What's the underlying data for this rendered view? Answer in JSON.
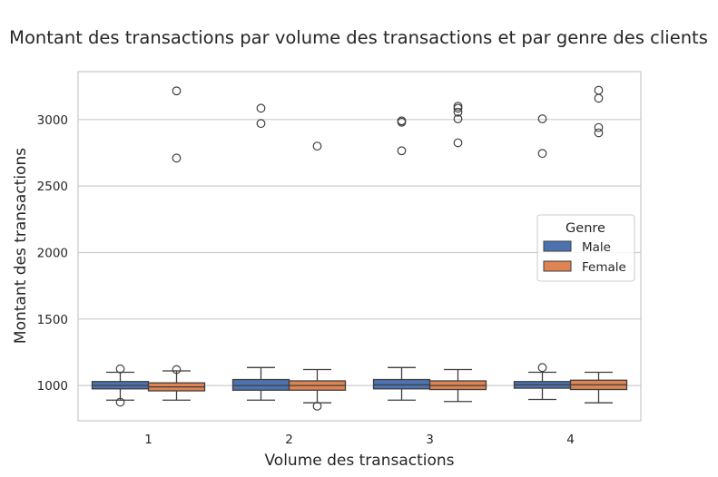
{
  "chart_data": {
    "type": "box",
    "title": "Montant des transactions par volume des transactions et par genre des clients",
    "xlabel": "Volume des transactions",
    "ylabel": "Montant des transactions",
    "categories": [
      "1",
      "2",
      "3",
      "4"
    ],
    "ylim": [
      735,
      3360
    ],
    "yticks": [
      1000,
      1500,
      2000,
      2500,
      3000
    ],
    "grid": "horizontal",
    "legend": {
      "title": "Genre",
      "placement": "center-right"
    },
    "series": [
      {
        "name": "Male",
        "color": "#4c72b0",
        "boxes": [
          {
            "whisker_low": 890,
            "q1": 975,
            "median": 1000,
            "q3": 1030,
            "whisker_high": 1100,
            "outliers": [
              1125,
              875
            ]
          },
          {
            "whisker_low": 890,
            "q1": 965,
            "median": 1000,
            "q3": 1045,
            "whisker_high": 1135,
            "outliers": [
              3085,
              2970
            ]
          },
          {
            "whisker_low": 890,
            "q1": 975,
            "median": 1005,
            "q3": 1045,
            "whisker_high": 1135,
            "outliers": [
              2990,
              2980,
              2765
            ]
          },
          {
            "whisker_low": 895,
            "q1": 980,
            "median": 1005,
            "q3": 1030,
            "whisker_high": 1100,
            "outliers": [
              1135,
              3005,
              2745
            ]
          }
        ]
      },
      {
        "name": "Female",
        "color": "#dd8452",
        "boxes": [
          {
            "whisker_low": 890,
            "q1": 960,
            "median": 990,
            "q3": 1020,
            "whisker_high": 1110,
            "outliers": [
              1120,
              3215,
              2710
            ]
          },
          {
            "whisker_low": 870,
            "q1": 965,
            "median": 1000,
            "q3": 1035,
            "whisker_high": 1120,
            "outliers": [
              845,
              2800
            ]
          },
          {
            "whisker_low": 880,
            "q1": 970,
            "median": 1000,
            "q3": 1035,
            "whisker_high": 1120,
            "outliers": [
              3100,
              3085,
              3055,
              3005,
              2825
            ]
          },
          {
            "whisker_low": 870,
            "q1": 970,
            "median": 1005,
            "q3": 1040,
            "whisker_high": 1100,
            "outliers": [
              3220,
              3160,
              2940,
              2900
            ]
          }
        ]
      }
    ]
  }
}
